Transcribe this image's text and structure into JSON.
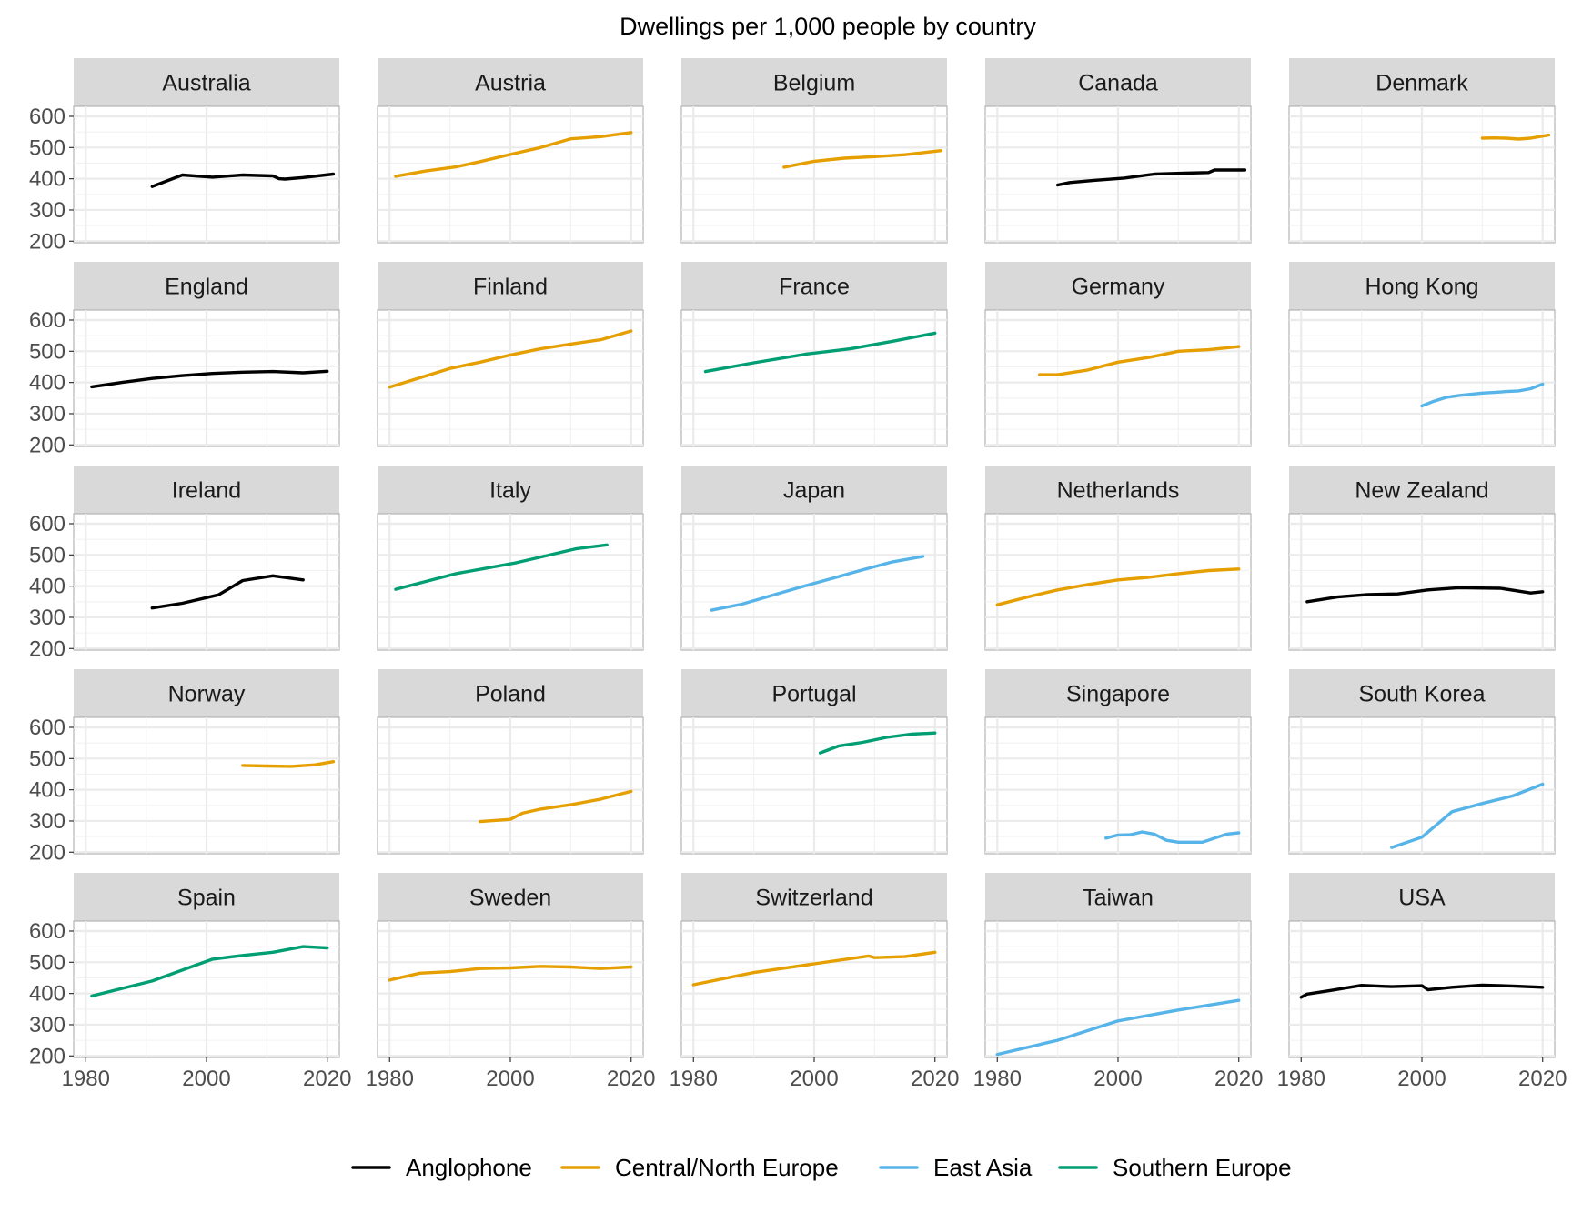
{
  "chart_data": {
    "type": "line",
    "title": "Dwellings per 1,000 people by country",
    "xlabel": "",
    "ylabel": "",
    "x_range": [
      1978,
      2022
    ],
    "y_range": [
      195,
      632
    ],
    "x_ticks": [
      1980,
      2000,
      2020
    ],
    "y_ticks": [
      200,
      300,
      400,
      500,
      600
    ],
    "grid": true,
    "legend_position": "bottom",
    "groups": [
      {
        "name": "Anglophone",
        "color": "#000000"
      },
      {
        "name": "Central/North Europe",
        "color": "#E69F00"
      },
      {
        "name": "East Asia",
        "color": "#56B4E9"
      },
      {
        "name": "Southern Europe",
        "color": "#009E73"
      }
    ],
    "panels": [
      {
        "country": "Australia",
        "group": "Anglophone",
        "x": [
          1991,
          1996,
          2001,
          2006,
          2011,
          2012,
          2013,
          2016,
          2021
        ],
        "y": [
          375,
          412,
          405,
          412,
          409,
          400,
          399,
          404,
          415
        ]
      },
      {
        "country": "Austria",
        "group": "Central/North Europe",
        "x": [
          1981,
          1986,
          1991,
          1995,
          2000,
          2005,
          2010,
          2015,
          2020
        ],
        "y": [
          408,
          425,
          438,
          455,
          478,
          500,
          528,
          535,
          548
        ]
      },
      {
        "country": "Belgium",
        "group": "Central/North Europe",
        "x": [
          1995,
          2000,
          2005,
          2010,
          2015,
          2021
        ],
        "y": [
          437,
          456,
          466,
          471,
          477,
          490
        ]
      },
      {
        "country": "Canada",
        "group": "Anglophone",
        "x": [
          1990,
          1992,
          1996,
          2001,
          2006,
          2011,
          2015,
          2016,
          2021
        ],
        "y": [
          380,
          388,
          395,
          402,
          415,
          418,
          420,
          428,
          428
        ]
      },
      {
        "country": "Denmark",
        "group": "Central/North Europe",
        "x": [
          2010,
          2012,
          2014,
          2016,
          2018,
          2021
        ],
        "y": [
          530,
          531,
          530,
          527,
          530,
          540
        ]
      },
      {
        "country": "England",
        "group": "Anglophone",
        "x": [
          1981,
          1986,
          1991,
          1996,
          2001,
          2006,
          2011,
          2016,
          2020
        ],
        "y": [
          386,
          400,
          413,
          422,
          429,
          433,
          435,
          431,
          436
        ]
      },
      {
        "country": "Finland",
        "group": "Central/North Europe",
        "x": [
          1980,
          1985,
          1990,
          1995,
          2000,
          2005,
          2010,
          2015,
          2020
        ],
        "y": [
          385,
          415,
          445,
          465,
          488,
          508,
          523,
          537,
          565
        ]
      },
      {
        "country": "France",
        "group": "Southern Europe",
        "x": [
          1982,
          1990,
          1999,
          2006,
          2013,
          2020
        ],
        "y": [
          435,
          463,
          492,
          508,
          532,
          558
        ]
      },
      {
        "country": "Germany",
        "group": "Central/North Europe",
        "x": [
          1987,
          1990,
          1995,
          2000,
          2005,
          2010,
          2015,
          2020
        ],
        "y": [
          425,
          425,
          440,
          465,
          480,
          500,
          505,
          515
        ]
      },
      {
        "country": "Hong Kong",
        "group": "East Asia",
        "x": [
          2000,
          2002,
          2004,
          2006,
          2008,
          2010,
          2012,
          2014,
          2016,
          2018,
          2020
        ],
        "y": [
          325,
          340,
          352,
          358,
          362,
          366,
          368,
          371,
          373,
          380,
          395
        ]
      },
      {
        "country": "Ireland",
        "group": "Anglophone",
        "x": [
          1991,
          1996,
          2002,
          2006,
          2011,
          2016
        ],
        "y": [
          330,
          345,
          372,
          418,
          433,
          420
        ]
      },
      {
        "country": "Italy",
        "group": "Southern Europe",
        "x": [
          1981,
          1991,
          2001,
          2011,
          2016
        ],
        "y": [
          390,
          440,
          475,
          520,
          532
        ]
      },
      {
        "country": "Japan",
        "group": "East Asia",
        "x": [
          1983,
          1988,
          1993,
          1998,
          2003,
          2008,
          2013,
          2018
        ],
        "y": [
          323,
          342,
          370,
          398,
          425,
          452,
          478,
          495
        ]
      },
      {
        "country": "Netherlands",
        "group": "Central/North Europe",
        "x": [
          1980,
          1985,
          1990,
          1995,
          2000,
          2005,
          2010,
          2015,
          2020
        ],
        "y": [
          340,
          365,
          388,
          405,
          420,
          428,
          440,
          450,
          455
        ]
      },
      {
        "country": "New Zealand",
        "group": "Anglophone",
        "x": [
          1981,
          1986,
          1991,
          1996,
          2001,
          2006,
          2013,
          2018,
          2020
        ],
        "y": [
          350,
          365,
          373,
          375,
          388,
          395,
          393,
          378,
          382
        ]
      },
      {
        "country": "Norway",
        "group": "Central/North Europe",
        "x": [
          2006,
          2010,
          2014,
          2018,
          2021
        ],
        "y": [
          478,
          476,
          475,
          480,
          490
        ]
      },
      {
        "country": "Poland",
        "group": "Central/North Europe",
        "x": [
          1995,
          2000,
          2002,
          2005,
          2010,
          2015,
          2020
        ],
        "y": [
          298,
          305,
          325,
          338,
          352,
          370,
          395
        ]
      },
      {
        "country": "Portugal",
        "group": "Southern Europe",
        "x": [
          2001,
          2004,
          2008,
          2012,
          2016,
          2020
        ],
        "y": [
          518,
          540,
          552,
          568,
          578,
          582
        ]
      },
      {
        "country": "Singapore",
        "group": "East Asia",
        "x": [
          1998,
          2000,
          2002,
          2004,
          2006,
          2008,
          2010,
          2014,
          2016,
          2018,
          2020
        ],
        "y": [
          245,
          255,
          256,
          265,
          258,
          238,
          232,
          232,
          245,
          258,
          262
        ]
      },
      {
        "country": "South Korea",
        "group": "East Asia",
        "x": [
          1995,
          2000,
          2005,
          2010,
          2015,
          2020
        ],
        "y": [
          215,
          248,
          330,
          356,
          380,
          418
        ]
      },
      {
        "country": "Spain",
        "group": "Southern Europe",
        "x": [
          1981,
          1991,
          2001,
          2006,
          2011,
          2016,
          2020
        ],
        "y": [
          392,
          440,
          510,
          522,
          532,
          550,
          546
        ]
      },
      {
        "country": "Sweden",
        "group": "Central/North Europe",
        "x": [
          1980,
          1985,
          1990,
          1995,
          2000,
          2005,
          2010,
          2015,
          2020
        ],
        "y": [
          443,
          465,
          470,
          480,
          482,
          487,
          485,
          480,
          485
        ]
      },
      {
        "country": "Switzerland",
        "group": "Central/North Europe",
        "x": [
          1980,
          1990,
          2000,
          2009,
          2010,
          2015,
          2020
        ],
        "y": [
          428,
          467,
          495,
          520,
          515,
          518,
          532
        ]
      },
      {
        "country": "Taiwan",
        "group": "East Asia",
        "x": [
          1980,
          1990,
          2000,
          2010,
          2020
        ],
        "y": [
          205,
          250,
          312,
          347,
          378
        ]
      },
      {
        "country": "USA",
        "group": "Anglophone",
        "x": [
          1980,
          1981,
          1985,
          1990,
          1995,
          2000,
          2001,
          2005,
          2010,
          2015,
          2020
        ],
        "y": [
          388,
          398,
          410,
          426,
          422,
          425,
          412,
          420,
          427,
          424,
          420
        ]
      }
    ]
  }
}
